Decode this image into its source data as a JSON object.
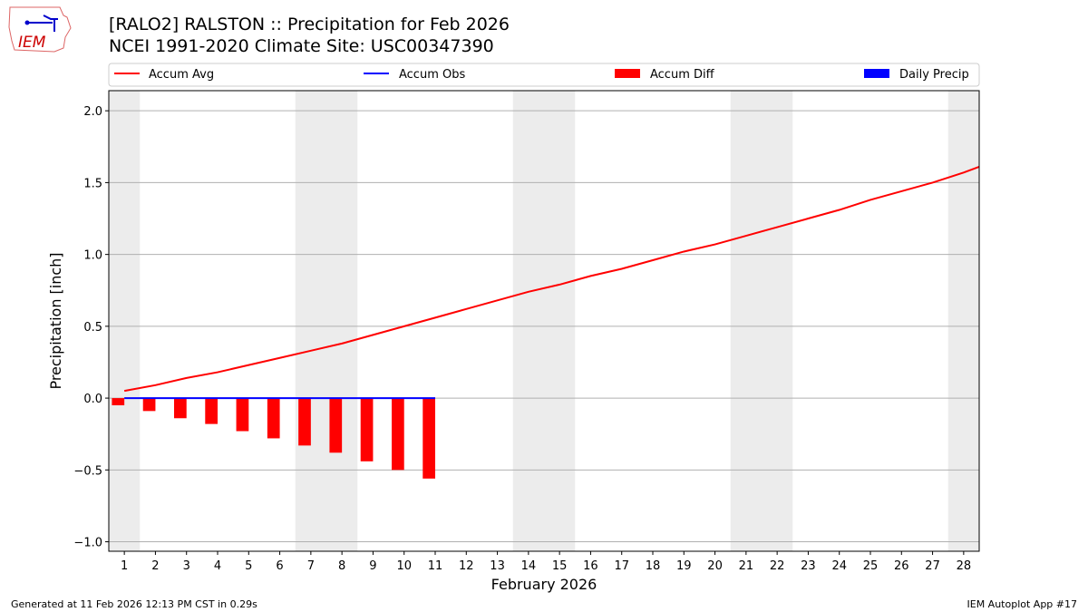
{
  "header": {
    "title": "[RALO2] RALSTON :: Precipitation for Feb 2026",
    "subtitle": "NCEI 1991-2020 Climate Site: USC00347390",
    "logo_text": "IEM"
  },
  "footer": {
    "generated": "Generated at 11 Feb 2026 12:13 PM CST in 0.29s",
    "app": "IEM Autoplot App #17"
  },
  "colors": {
    "avg": "#ff0000",
    "obs": "#0000ff",
    "diff": "#ff0000",
    "daily": "#0000ff",
    "weekend": "#ececec",
    "grid": "#b0b0b0"
  },
  "chart_data": {
    "type": "line",
    "title": "[RALO2] RALSTON :: Precipitation for Feb 2026",
    "xlabel": "February 2026",
    "ylabel": "Precipitation [inch]",
    "xlim": [
      0.5,
      28.5
    ],
    "ylim": [
      -1.066,
      2.14
    ],
    "grid": true,
    "legend_placement": "top",
    "legend": [
      "Accum Avg",
      "Accum Obs",
      "Accum Diff",
      "Daily Precip"
    ],
    "x_ticks": [
      1,
      2,
      3,
      4,
      5,
      6,
      7,
      8,
      9,
      10,
      11,
      12,
      13,
      14,
      15,
      16,
      17,
      18,
      19,
      20,
      21,
      22,
      23,
      24,
      25,
      26,
      27,
      28
    ],
    "y_ticks": [
      -1.0,
      -0.5,
      0.0,
      0.5,
      1.0,
      1.5,
      2.0
    ],
    "y_tick_labels": [
      "−1.0",
      "−0.5",
      "0.0",
      "0.5",
      "1.0",
      "1.5",
      "2.0"
    ],
    "weekends": [
      [
        0.5,
        1.5
      ],
      [
        6.5,
        8.5
      ],
      [
        13.5,
        15.5
      ],
      [
        20.5,
        22.5
      ],
      [
        27.5,
        28.5
      ]
    ],
    "series": [
      {
        "name": "Accum Avg",
        "x": [
          1,
          2,
          3,
          4,
          5,
          6,
          7,
          8,
          9,
          10,
          11,
          12,
          13,
          14,
          15,
          16,
          17,
          18,
          19,
          20,
          21,
          22,
          23,
          24,
          25,
          26,
          27,
          28,
          29
        ],
        "values": [
          0.05,
          0.09,
          0.14,
          0.18,
          0.23,
          0.28,
          0.33,
          0.38,
          0.44,
          0.5,
          0.56,
          0.62,
          0.68,
          0.74,
          0.79,
          0.85,
          0.9,
          0.96,
          1.02,
          1.07,
          1.13,
          1.19,
          1.25,
          1.31,
          1.38,
          1.44,
          1.5,
          1.57,
          1.65
        ]
      },
      {
        "name": "Accum Obs",
        "x": [
          1,
          2,
          3,
          4,
          5,
          6,
          7,
          8,
          9,
          10,
          11
        ],
        "values": [
          0,
          0,
          0,
          0,
          0,
          0,
          0,
          0,
          0,
          0,
          0
        ]
      },
      {
        "name": "Accum Diff",
        "x": [
          1,
          2,
          3,
          4,
          5,
          6,
          7,
          8,
          9,
          10,
          11
        ],
        "values": [
          -0.05,
          -0.09,
          -0.14,
          -0.18,
          -0.23,
          -0.28,
          -0.33,
          -0.38,
          -0.44,
          -0.5,
          -0.56
        ]
      },
      {
        "name": "Daily Precip",
        "x": [
          1,
          2,
          3,
          4,
          5,
          6,
          7,
          8,
          9,
          10,
          11
        ],
        "values": [
          0,
          0,
          0,
          0,
          0,
          0,
          0,
          0,
          0,
          0,
          0
        ]
      }
    ]
  }
}
